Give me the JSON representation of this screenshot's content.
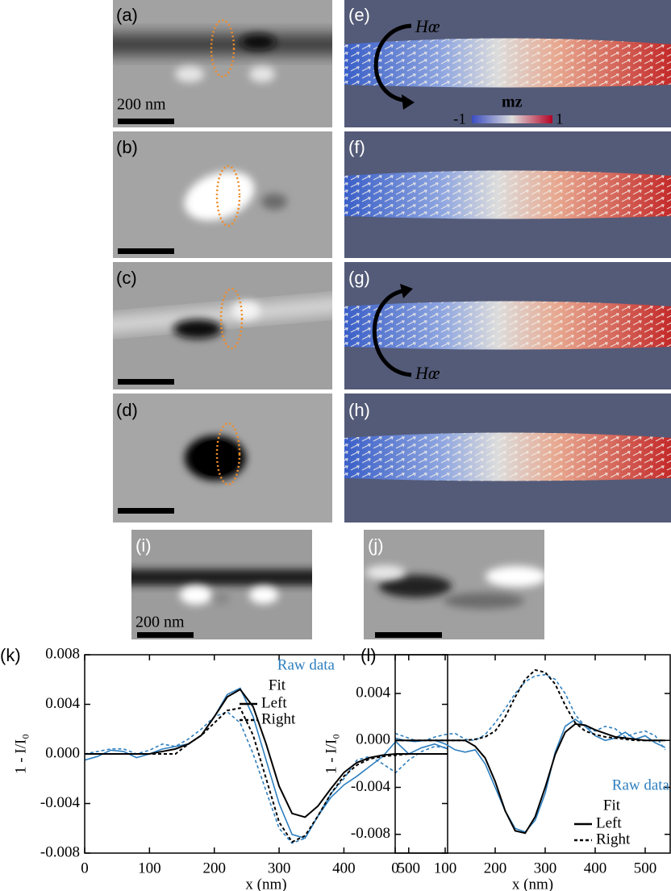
{
  "figure": {
    "panel_labels": [
      "(a)",
      "(b)",
      "(c)",
      "(d)",
      "(e)",
      "(f)",
      "(g)",
      "(h)",
      "(i)",
      "(j)"
    ],
    "scale_labels": [
      "200 nm",
      "200 nm"
    ],
    "field_labels": [
      "Hœ",
      "Hœ"
    ],
    "colorbar": {
      "label": "mz",
      "min": "-1",
      "max": "1"
    }
  },
  "chart_data": [
    {
      "type": "line",
      "label": "(k)",
      "xlabel": "x (nm)",
      "ylabel": "1 - I/I₀",
      "xlim": [
        0,
        560
      ],
      "xticks": [
        0,
        100,
        200,
        300,
        400,
        500
      ],
      "ylim": [
        -0.008,
        0.008
      ],
      "yticks": [
        -0.008,
        -0.004,
        {
          "value": 0,
          "label": "0.000"
        },
        0.004,
        0.008
      ],
      "legend": "upper right",
      "legend_groups": [
        "Raw data",
        "Fit"
      ],
      "x": [
        0,
        20,
        40,
        60,
        80,
        100,
        120,
        140,
        160,
        180,
        200,
        220,
        240,
        260,
        280,
        300,
        320,
        340,
        360,
        380,
        400,
        420,
        440,
        460,
        480,
        500,
        520,
        540,
        560
      ],
      "series": [
        {
          "color": "#2e7fbf",
          "dashed": false,
          "group": 0,
          "values": [
            -0.0005,
            -0.0002,
            0.0003,
            0.0002,
            -0.0003,
            0,
            0.0004,
            0.0006,
            0.0008,
            0.0015,
            0.003,
            0.0048,
            0.0053,
            0.003,
            -0.0005,
            -0.004,
            -0.0065,
            -0.0068,
            -0.005,
            -0.0035,
            -0.0025,
            -0.0018,
            -0.001,
            -0.0002,
            0.001,
            0,
            0.0005,
            0.0008,
            0.0004
          ]
        },
        {
          "color": "#2e7fbf",
          "dashed": true,
          "group": 0,
          "values": [
            0,
            0.0002,
            0.0004,
            0.0004,
            0,
            0.0003,
            0.0008,
            0.0006,
            0.0012,
            0.002,
            0.003,
            0.0034,
            0.0025,
            0,
            -0.003,
            -0.006,
            -0.0072,
            -0.0068,
            -0.005,
            -0.0032,
            -0.002,
            -0.0005,
            -0.0002,
            -0.0008,
            -0.0015,
            -0.0005,
            0.0002,
            0.0006,
            0.0005
          ]
        },
        {
          "name": "Left",
          "color": "#000000",
          "dashed": false,
          "group": 1,
          "values": [
            0,
            0,
            0,
            0,
            0,
            0,
            0.0002,
            0.0004,
            0.0008,
            0.0015,
            0.003,
            0.0046,
            0.0052,
            0.0038,
            0.0008,
            -0.0026,
            -0.0048,
            -0.0051,
            -0.0042,
            -0.0028,
            -0.0015,
            -0.0007,
            -0.0003,
            -0.0001,
            0,
            0,
            0,
            0,
            0
          ]
        },
        {
          "name": "Right",
          "color": "#000000",
          "dashed": true,
          "group": 1,
          "values": [
            0,
            0,
            0,
            0,
            0,
            0,
            0,
            0,
            0.0008,
            0.0015,
            0.0025,
            0.0035,
            0.0037,
            0.0015,
            -0.002,
            -0.0055,
            -0.0071,
            -0.0066,
            -0.005,
            -0.0032,
            -0.0018,
            -0.0009,
            -0.0004,
            -0.0002,
            -0.0001,
            0,
            0,
            0,
            0
          ]
        }
      ]
    },
    {
      "type": "line",
      "label": "(l)",
      "xlabel": "x (nm)",
      "ylabel": "1 - I/I₀",
      "xlim": [
        0,
        550
      ],
      "xticks": [
        0,
        100,
        200,
        300,
        400,
        500
      ],
      "ylim": [
        -0.0096,
        0.0073
      ],
      "yticks": [
        -0.008,
        -0.004,
        {
          "value": 0,
          "label": "0.000"
        },
        0.004
      ],
      "legend": "lower right",
      "legend_groups": [
        "Raw data",
        "Fit"
      ],
      "x": [
        0,
        20,
        40,
        60,
        80,
        100,
        120,
        140,
        160,
        180,
        200,
        220,
        240,
        260,
        280,
        300,
        320,
        340,
        360,
        380,
        400,
        420,
        440,
        460,
        480,
        500,
        520,
        540
      ],
      "series": [
        {
          "color": "#2e7fbf",
          "dashed": false,
          "group": 0,
          "values": [
            0.0002,
            0,
            -0.0001,
            0,
            0,
            -0.0003,
            -0.0008,
            -0.001,
            -0.0008,
            -0.002,
            -0.004,
            -0.006,
            -0.0075,
            -0.0078,
            -0.0068,
            -0.0045,
            -0.001,
            0.0012,
            0.0018,
            0.0012,
            0.0004,
            0,
            0.0002,
            0.0007,
            0.0001,
            0.0004,
            -0.0002,
            -0.0006
          ]
        },
        {
          "color": "#2e7fbf",
          "dashed": true,
          "group": 0,
          "values": [
            0.0006,
            0.0003,
            0,
            0,
            0.0003,
            0.0005,
            0.0006,
            0.0001,
            0,
            0.0005,
            0.0015,
            0.0027,
            0.004,
            0.005,
            0.0055,
            0.0056,
            0.0052,
            0.004,
            0.0022,
            0.0012,
            0.0008,
            0.0012,
            0.001,
            0.0003,
            0.0006,
            0.0008,
            0.0004,
            -0.0008
          ]
        },
        {
          "name": "Left",
          "color": "#000000",
          "dashed": false,
          "group": 1,
          "values": [
            0,
            0,
            0,
            0,
            0,
            0,
            0,
            0,
            -0.0005,
            -0.0015,
            -0.0035,
            -0.006,
            -0.0077,
            -0.0079,
            -0.0065,
            -0.004,
            -0.0012,
            0.0007,
            0.0014,
            0.0013,
            0.0009,
            0.0006,
            0.0003,
            0.0002,
            0.0001,
            0,
            0,
            0
          ]
        },
        {
          "name": "Right",
          "color": "#000000",
          "dashed": true,
          "group": 1,
          "values": [
            0,
            0,
            0,
            0,
            0,
            0,
            0,
            0,
            0.0001,
            0.0003,
            0.0008,
            0.002,
            0.0037,
            0.0052,
            0.006,
            0.0058,
            0.0048,
            0.003,
            0.0015,
            0.0008,
            0.0005,
            0.0003,
            0.0002,
            0.0001,
            0,
            0,
            0,
            0
          ]
        }
      ]
    }
  ]
}
